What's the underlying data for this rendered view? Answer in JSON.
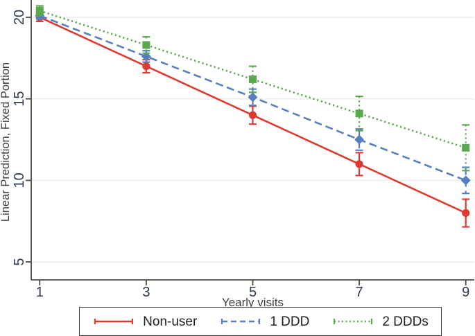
{
  "chart_data": {
    "type": "line",
    "title": "",
    "xlabel": "Yearly visits",
    "ylabel": "Linear Prediction, Fixed Portion",
    "x": [
      1,
      3,
      5,
      7,
      9
    ],
    "xticks": [
      "1",
      "3",
      "5",
      "7",
      "9"
    ],
    "yticks": [
      "5",
      "10",
      "15",
      "20"
    ],
    "ytick_values": [
      5,
      10,
      15,
      20
    ],
    "xtick_values": [
      1,
      3,
      5,
      7,
      9
    ],
    "xlim": [
      0.84,
      9.16
    ],
    "ylim": [
      3.9,
      21.06
    ],
    "grid": "horizontal-light",
    "legend_position": "bottom-boxed",
    "series": [
      {
        "name": "Non-user",
        "color": "#dd3b32",
        "line_style": "solid",
        "marker": "circle",
        "values": [
          20.0,
          17.0,
          14.0,
          11.0,
          8.0
        ],
        "ci": [
          0.25,
          0.4,
          0.55,
          0.7,
          0.85
        ]
      },
      {
        "name": "1 DDD",
        "color": "#5580bd",
        "line_style": "dashed",
        "marker": "diamond",
        "values": [
          20.1,
          17.6,
          15.1,
          12.5,
          10.0
        ],
        "ci": [
          0.2,
          0.35,
          0.5,
          0.65,
          0.8
        ]
      },
      {
        "name": "2 DDDs",
        "color": "#5ba84f",
        "line_style": "dotted",
        "marker": "square",
        "values": [
          20.4,
          18.3,
          16.2,
          14.1,
          12.0
        ],
        "ci": [
          0.3,
          0.5,
          0.8,
          1.05,
          1.4
        ]
      }
    ],
    "colors": {
      "axis": "#4a4a4a",
      "grid": "#ededed",
      "tick_label": "#2d3a52",
      "axis_label": "#3d3d3d"
    }
  }
}
